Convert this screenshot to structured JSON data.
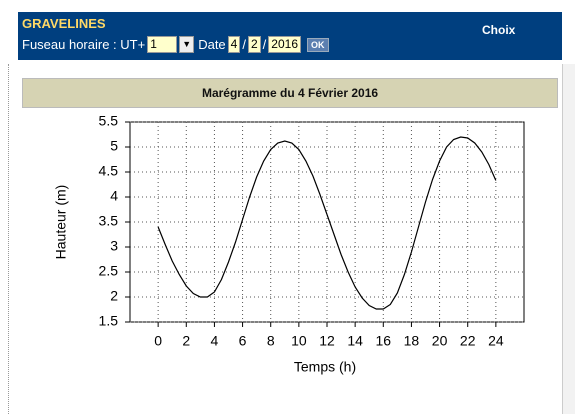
{
  "header": {
    "title": "GRAVELINES",
    "choix": "Choix",
    "timezone_label": "Fuseau horaire : UT+",
    "timezone_value": "1",
    "date_label": "Date",
    "day": "4",
    "separator": "/",
    "month": "2",
    "year": "2016",
    "ok": "OK"
  },
  "chart_data": {
    "type": "line",
    "title": "Marégramme du 4 Février 2016",
    "x_label": "Temps (h)",
    "y_label": "Hauteur (m)",
    "color": "#000000",
    "grid": true,
    "x": [
      0,
      0.5,
      1,
      1.5,
      2,
      2.5,
      3,
      3.5,
      4,
      4.5,
      5,
      5.5,
      6,
      6.5,
      7,
      7.5,
      8,
      8.5,
      9,
      9.5,
      10,
      10.5,
      11,
      11.5,
      12,
      12.5,
      13,
      13.5,
      14,
      14.5,
      15,
      15.5,
      16,
      16.5,
      17,
      17.5,
      18,
      18.5,
      19,
      19.5,
      20,
      20.5,
      21,
      21.5,
      22,
      22.5,
      23,
      23.5,
      24
    ],
    "values": [
      3.4,
      3.05,
      2.72,
      2.45,
      2.22,
      2.07,
      2.0,
      2.0,
      2.1,
      2.35,
      2.7,
      3.1,
      3.55,
      4.0,
      4.4,
      4.72,
      4.95,
      5.08,
      5.12,
      5.08,
      4.95,
      4.72,
      4.42,
      4.05,
      3.65,
      3.25,
      2.85,
      2.5,
      2.2,
      1.98,
      1.83,
      1.76,
      1.76,
      1.85,
      2.08,
      2.45,
      2.9,
      3.4,
      3.9,
      4.35,
      4.72,
      5.0,
      5.15,
      5.2,
      5.18,
      5.08,
      4.9,
      4.65,
      4.33
    ],
    "xlim": [
      -2,
      26
    ],
    "xticks": [
      0,
      2,
      4,
      6,
      8,
      10,
      12,
      14,
      16,
      18,
      20,
      22,
      24
    ],
    "ylim": [
      1.5,
      5.5
    ],
    "yticks": [
      1.5,
      2,
      2.5,
      3,
      3.5,
      4,
      4.5,
      5,
      5.5
    ]
  }
}
